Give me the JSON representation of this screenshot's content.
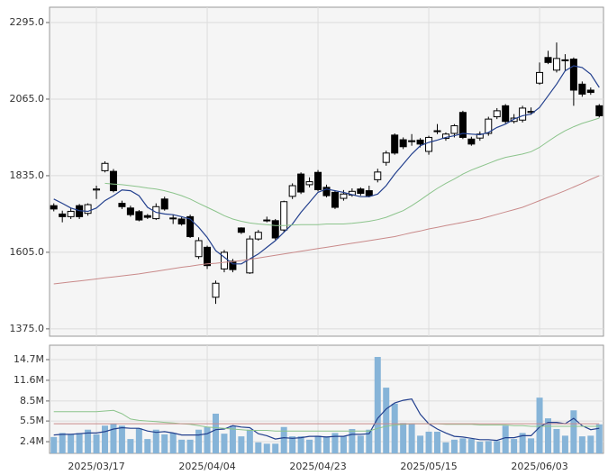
{
  "chart_data": [
    {
      "type": "candlestick",
      "open": [
        1745,
        1720,
        1712,
        1745,
        1722,
        1792,
        1850,
        1848,
        1752,
        1738,
        1727,
        1715,
        1706,
        1765,
        1708,
        1705,
        1712,
        1592,
        1620,
        1470,
        1555,
        1578,
        1678,
        1543,
        1645,
        1700,
        1700,
        1672,
        1773,
        1840,
        1808,
        1845,
        1800,
        1785,
        1767,
        1777,
        1795,
        1790,
        1823,
        1875,
        1957,
        1943,
        1940,
        1942,
        1908,
        1968,
        1947,
        1962,
        2025,
        1945,
        1948,
        1962,
        2012,
        2045,
        1998,
        2002,
        2025,
        2113,
        2190,
        2152,
        2183,
        2185,
        2110,
        2092,
        2045
      ],
      "high": [
        1752,
        1730,
        1738,
        1750,
        1752,
        1805,
        1878,
        1855,
        1760,
        1745,
        1732,
        1720,
        1752,
        1772,
        1718,
        1712,
        1718,
        1650,
        1625,
        1520,
        1612,
        1585,
        1680,
        1655,
        1672,
        1712,
        1705,
        1760,
        1812,
        1845,
        1830,
        1852,
        1808,
        1790,
        1792,
        1797,
        1800,
        1805,
        1856,
        1910,
        1962,
        1950,
        1960,
        1948,
        1955,
        1990,
        1965,
        1990,
        2030,
        1952,
        1968,
        2012,
        2038,
        2050,
        2020,
        2045,
        2040,
        2175,
        2210,
        2235,
        2200,
        2190,
        2118,
        2100,
        2050
      ],
      "low": [
        1728,
        1695,
        1705,
        1705,
        1715,
        1765,
        1845,
        1785,
        1735,
        1712,
        1698,
        1705,
        1702,
        1730,
        1690,
        1685,
        1648,
        1585,
        1555,
        1450,
        1545,
        1545,
        1660,
        1540,
        1640,
        1695,
        1642,
        1665,
        1765,
        1780,
        1800,
        1788,
        1770,
        1735,
        1760,
        1772,
        1775,
        1770,
        1815,
        1865,
        1898,
        1915,
        1925,
        1920,
        1898,
        1960,
        1940,
        1950,
        1945,
        1925,
        1940,
        1955,
        2005,
        1992,
        1992,
        1995,
        2018,
        2108,
        2170,
        2145,
        2150,
        2045,
        2072,
        2078,
        2010
      ],
      "close": [
        1735,
        1712,
        1728,
        1712,
        1748,
        1795,
        1872,
        1790,
        1742,
        1718,
        1702,
        1710,
        1742,
        1735,
        1706,
        1690,
        1652,
        1640,
        1565,
        1512,
        1605,
        1553,
        1665,
        1645,
        1665,
        1702,
        1648,
        1757,
        1805,
        1786,
        1817,
        1793,
        1775,
        1740,
        1780,
        1788,
        1782,
        1775,
        1846,
        1903,
        1903,
        1922,
        1938,
        1930,
        1950,
        1970,
        1960,
        1985,
        1950,
        1930,
        1960,
        2005,
        2030,
        1998,
        2008,
        2038,
        2028,
        2145,
        2175,
        2187,
        2182,
        2092,
        2080,
        2085,
        2015
      ],
      "series": [
        {
          "color": "#23408e",
          "values": [
            1765,
            1752,
            1738,
            1730,
            1728,
            1738,
            1760,
            1775,
            1792,
            1790,
            1775,
            1740,
            1725,
            1720,
            1718,
            1712,
            1705,
            1680,
            1650,
            1610,
            1590,
            1570,
            1570,
            1585,
            1600,
            1620,
            1640,
            1665,
            1690,
            1725,
            1755,
            1785,
            1795,
            1790,
            1785,
            1778,
            1772,
            1772,
            1780,
            1805,
            1840,
            1870,
            1900,
            1925,
            1935,
            1942,
            1950,
            1955,
            1962,
            1960,
            1958,
            1965,
            1980,
            1990,
            2005,
            2015,
            2020,
            2040,
            2075,
            2110,
            2150,
            2165,
            2160,
            2140,
            2100
          ]
        },
        {
          "color": "#8cc48c",
          "values": [
            null,
            null,
            null,
            null,
            null,
            null,
            1812,
            1810,
            1808,
            1805,
            1802,
            1798,
            1795,
            1790,
            1783,
            1775,
            1765,
            1752,
            1740,
            1728,
            1715,
            1705,
            1698,
            1693,
            1690,
            1688,
            1685,
            1685,
            1687,
            1688,
            1688,
            1688,
            1690,
            1690,
            1690,
            1692,
            1695,
            1698,
            1703,
            1710,
            1720,
            1730,
            1745,
            1762,
            1780,
            1797,
            1812,
            1825,
            1840,
            1852,
            1862,
            1872,
            1882,
            1890,
            1895,
            1900,
            1907,
            1920,
            1938,
            1955,
            1970,
            1982,
            1992,
            2000,
            2008
          ]
        },
        {
          "color": "#c98a8a",
          "values": [
            1510,
            1513,
            1516,
            1519,
            1522,
            1525,
            1528,
            1531,
            1534,
            1537,
            1540,
            1544,
            1548,
            1552,
            1556,
            1560,
            1563,
            1567,
            1570,
            1572,
            1575,
            1577,
            1580,
            1584,
            1588,
            1592,
            1596,
            1600,
            1604,
            1608,
            1612,
            1616,
            1620,
            1624,
            1628,
            1632,
            1636,
            1640,
            1644,
            1648,
            1652,
            1658,
            1664,
            1669,
            1675,
            1680,
            1685,
            1690,
            1695,
            1700,
            1705,
            1712,
            1719,
            1726,
            1733,
            1740,
            1750,
            1760,
            1770,
            1780,
            1790,
            1801,
            1812,
            1824,
            1835
          ]
        }
      ],
      "ylim": [
        1353,
        2341
      ],
      "yticks": [
        {
          "value": 2295,
          "label": "2295.0"
        },
        {
          "value": 2065,
          "label": "2065.0"
        },
        {
          "value": 1835,
          "label": "1835.0"
        },
        {
          "value": 1605,
          "label": "1605.0"
        },
        {
          "value": 1375,
          "label": "1375.0"
        }
      ],
      "grid": true
    },
    {
      "type": "bar",
      "categories": [
        null,
        null,
        null,
        null,
        null,
        "2025/03/17",
        null,
        null,
        null,
        null,
        null,
        null,
        null,
        null,
        null,
        null,
        null,
        null,
        "2025/04/04",
        null,
        null,
        null,
        null,
        null,
        null,
        null,
        null,
        null,
        null,
        null,
        null,
        "2025/04/23",
        null,
        null,
        null,
        null,
        null,
        null,
        null,
        null,
        null,
        null,
        null,
        null,
        "2025/05/15",
        null,
        null,
        null,
        null,
        null,
        null,
        null,
        null,
        null,
        null,
        null,
        null,
        "2025/06/03",
        null,
        null,
        null,
        null,
        null,
        null,
        null
      ],
      "values": [
        3.1,
        3.7,
        3.5,
        3.7,
        4.2,
        3.5,
        4.8,
        5.1,
        4.8,
        2.8,
        4.4,
        2.8,
        4.2,
        3.5,
        3.7,
        2.7,
        2.7,
        4.2,
        4.6,
        6.6,
        3.6,
        4.8,
        3.2,
        4.2,
        2.3,
        2.1,
        2.1,
        4.6,
        3.2,
        3.2,
        2.7,
        3.3,
        3.2,
        3.7,
        3.2,
        4.3,
        3.3,
        4.2,
        15.1,
        10.5,
        8.1,
        5.2,
        5.1,
        3.3,
        3.9,
        3.9,
        2.3,
        2.7,
        2.9,
        2.8,
        2.4,
        2.5,
        2.5,
        4.8,
        2.8,
        3.7,
        2.9,
        9.0,
        5.9,
        4.3,
        3.3,
        7.1,
        3.2,
        3.3,
        5.0
      ],
      "color": "#86b4d8",
      "series": [
        {
          "color": "#23408e",
          "values": [
            3.4,
            3.5,
            3.5,
            3.6,
            3.7,
            3.7,
            3.9,
            4.3,
            4.5,
            4.4,
            4.4,
            4.0,
            3.8,
            3.9,
            3.7,
            3.4,
            3.4,
            3.4,
            3.6,
            4.2,
            4.3,
            4.8,
            4.6,
            4.5,
            3.6,
            3.3,
            2.8,
            3.0,
            2.9,
            3.0,
            3.2,
            3.2,
            3.1,
            3.2,
            3.2,
            3.5,
            3.5,
            3.6,
            5.9,
            7.3,
            8.2,
            8.6,
            8.8,
            6.5,
            5.1,
            4.3,
            3.7,
            3.2,
            3.1,
            2.9,
            2.7,
            2.7,
            2.6,
            3.0,
            3.0,
            3.3,
            3.3,
            4.6,
            5.3,
            5.3,
            5.1,
            5.9,
            4.8,
            4.2,
            4.4
          ]
        },
        {
          "color": "#8cc48c",
          "values": [
            6.9,
            6.9,
            6.9,
            6.9,
            6.9,
            6.9,
            7.0,
            7.1,
            6.6,
            5.8,
            5.6,
            5.5,
            5.4,
            5.3,
            5.2,
            5.1,
            5.0,
            4.8,
            4.6,
            4.5,
            4.4,
            4.3,
            4.2,
            4.1,
            4.1,
            4.1,
            4.0,
            4.0,
            4.0,
            4.0,
            4.0,
            4.0,
            4.0,
            4.0,
            4.0,
            4.0,
            4.0,
            4.0,
            4.4,
            4.7,
            4.9,
            5.0,
            5.1,
            5.1,
            5.1,
            5.1,
            5.0,
            5.0,
            5.0,
            5.0,
            4.9,
            4.9,
            4.9,
            4.9,
            4.8,
            4.8,
            4.7,
            4.7,
            4.7,
            4.7,
            4.7,
            4.7,
            4.7,
            4.7,
            4.7
          ]
        },
        {
          "color": "#c98a8a",
          "values": [
            5.1,
            5.1,
            5.1,
            5.1,
            5.1,
            5.1,
            5.1,
            5.1,
            5.1,
            5.1,
            5.1,
            5.1,
            5.1,
            5.1,
            5.1,
            5.1,
            5.1,
            5.1,
            5.1,
            5.1,
            5.1,
            5.1,
            5.1,
            5.1,
            5.1,
            5.1,
            5.1,
            5.1,
            5.1,
            5.1,
            5.1,
            5.1,
            5.1,
            5.1,
            5.1,
            5.1,
            5.1,
            5.1,
            5.1,
            5.1,
            5.1,
            5.1,
            5.1,
            5.1,
            5.1,
            5.1,
            5.1,
            5.1,
            5.1,
            5.1,
            5.1,
            5.1,
            5.1,
            5.1,
            5.1,
            5.1,
            5.1,
            5.1,
            5.1,
            5.1,
            5.1,
            5.1,
            5.1,
            5.1,
            5.1
          ]
        }
      ],
      "ylim": [
        0.65,
        16.86
      ],
      "yticks": [
        {
          "value": 14.7,
          "label": "14.7M"
        },
        {
          "value": 11.6,
          "label": "11.6M"
        },
        {
          "value": 8.5,
          "label": "8.5M"
        },
        {
          "value": 5.5,
          "label": "5.5M"
        },
        {
          "value": 2.4,
          "label": "2.4M"
        }
      ],
      "grid": true
    }
  ]
}
